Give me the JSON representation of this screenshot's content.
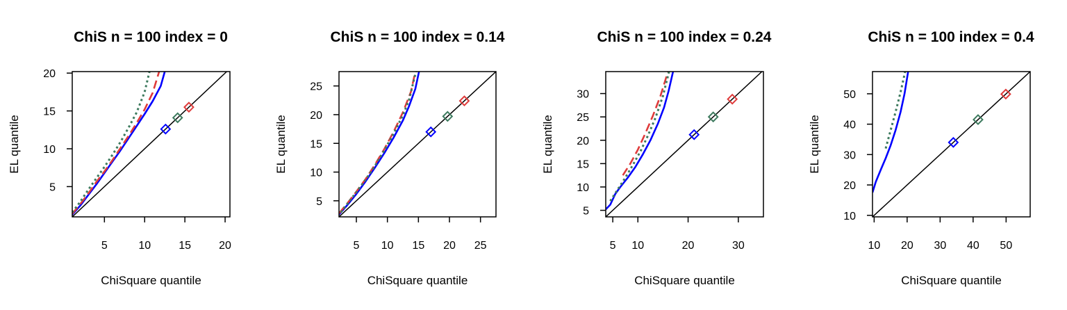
{
  "colors": {
    "diagonal": "#000000",
    "blue": "#0000ff",
    "red": "#df3b3b",
    "green": "#3d7a5e"
  },
  "chart_data": [
    {
      "type": "line",
      "title": "ChiS n = 100 index = 0",
      "xlabel": "ChiSquare quantile",
      "ylabel": "EL quantile",
      "xlim": [
        1.0,
        20.6
      ],
      "ylim": [
        1.0,
        20.2
      ],
      "xticks": [
        5,
        10,
        15,
        20
      ],
      "yticks": [
        5,
        10,
        15,
        20
      ],
      "series": [
        {
          "color": "blue",
          "style": "solid",
          "x": [
            1.0,
            2.0,
            3.0,
            4.0,
            5.0,
            6.0,
            7.0,
            8.0,
            9.0,
            10.0,
            11.0,
            12.0,
            12.5
          ],
          "y": [
            1.3,
            2.5,
            3.9,
            5.3,
            6.8,
            8.3,
            9.8,
            11.4,
            13.0,
            14.6,
            16.3,
            18.3,
            20.2
          ]
        },
        {
          "color": "red",
          "style": "dashed",
          "x": [
            1.0,
            2.0,
            3.0,
            4.0,
            5.0,
            6.0,
            7.0,
            8.0,
            9.0,
            10.0,
            11.0,
            11.8
          ],
          "y": [
            1.4,
            2.7,
            4.1,
            5.6,
            7.0,
            8.5,
            10.1,
            11.7,
            13.4,
            15.2,
            17.4,
            20.2
          ]
        },
        {
          "color": "green",
          "style": "dotted",
          "x": [
            1.0,
            2.0,
            3.0,
            4.0,
            5.0,
            6.0,
            7.0,
            8.0,
            9.0,
            10.0,
            10.6
          ],
          "y": [
            1.6,
            3.0,
            4.6,
            6.1,
            7.6,
            9.2,
            10.9,
            12.8,
            14.8,
            17.5,
            20.2
          ]
        }
      ],
      "markers": [
        {
          "color": "blue",
          "x": 12.6,
          "y": 12.6
        },
        {
          "color": "green",
          "x": 14.1,
          "y": 14.1
        },
        {
          "color": "red",
          "x": 15.5,
          "y": 15.5
        }
      ]
    },
    {
      "type": "line",
      "title": "ChiS n = 100 index = 0.14",
      "xlabel": "ChiSquare quantile",
      "ylabel": "EL quantile",
      "xlim": [
        2.2,
        27.5
      ],
      "ylim": [
        2.2,
        27.5
      ],
      "xticks": [
        5,
        10,
        15,
        20,
        25
      ],
      "yticks": [
        5,
        10,
        15,
        20,
        25
      ],
      "series": [
        {
          "color": "blue",
          "style": "solid",
          "x": [
            2.2,
            3.5,
            5.0,
            6.5,
            8.0,
            9.5,
            11.0,
            12.5,
            13.5,
            14.5,
            15.1
          ],
          "y": [
            2.6,
            4.2,
            6.2,
            8.4,
            10.8,
            13.3,
            16.0,
            19.0,
            21.5,
            24.5,
            27.5
          ]
        },
        {
          "color": "red",
          "style": "dashed",
          "x": [
            2.2,
            3.5,
            5.0,
            6.5,
            8.0,
            9.5,
            11.0,
            12.5,
            13.8,
            14.5
          ],
          "y": [
            2.8,
            4.5,
            6.6,
            8.8,
            11.3,
            14.0,
            17.0,
            20.4,
            24.0,
            27.5
          ]
        },
        {
          "color": "green",
          "style": "dotted",
          "x": [
            2.5,
            3.5,
            5.0,
            6.5,
            8.0,
            9.5,
            11.0,
            12.5,
            13.5,
            14.6
          ],
          "y": [
            3.0,
            4.4,
            6.5,
            8.7,
            11.1,
            13.8,
            16.7,
            19.9,
            22.6,
            27.5
          ]
        }
      ],
      "markers": [
        {
          "color": "blue",
          "x": 17.0,
          "y": 17.0
        },
        {
          "color": "green",
          "x": 19.7,
          "y": 19.7
        },
        {
          "color": "red",
          "x": 22.4,
          "y": 22.4
        }
      ]
    },
    {
      "type": "line",
      "title": "ChiS n = 100 index = 0.24",
      "xlabel": "ChiSquare quantile",
      "ylabel": "EL quantile",
      "xlim": [
        3.6,
        35.0
      ],
      "ylim": [
        3.6,
        34.7
      ],
      "xticks": [
        5,
        10,
        20,
        30
      ],
      "yticks": [
        5,
        10,
        15,
        20,
        25,
        30
      ],
      "series": [
        {
          "color": "blue",
          "style": "solid",
          "x": [
            3.6,
            4.5,
            5.5,
            6.5,
            8.0,
            9.5,
            11.0,
            12.5,
            14.0,
            15.2,
            16.1,
            17.0
          ],
          "y": [
            5.2,
            6.2,
            8.5,
            10.0,
            12.0,
            14.3,
            17.0,
            20.0,
            23.6,
            27.0,
            30.5,
            34.7
          ]
        },
        {
          "color": "red",
          "style": "dashed",
          "x": [
            7.0,
            8.5,
            10.0,
            11.5,
            13.0,
            14.5,
            16.0
          ],
          "y": [
            12.5,
            15.0,
            18.0,
            21.5,
            25.3,
            29.5,
            34.7
          ]
        },
        {
          "color": "green",
          "style": "dotted",
          "x": [
            4.5,
            6.0,
            7.5,
            9.0,
            10.5,
            12.0,
            13.5,
            15.0,
            16.2
          ],
          "y": [
            7.0,
            9.5,
            12.0,
            14.7,
            17.6,
            21.0,
            24.8,
            29.5,
            34.7
          ]
        }
      ],
      "markers": [
        {
          "color": "blue",
          "x": 21.2,
          "y": 21.2
        },
        {
          "color": "green",
          "x": 25.0,
          "y": 25.0
        },
        {
          "color": "red",
          "x": 28.8,
          "y": 28.8
        }
      ]
    },
    {
      "type": "line",
      "title": "ChiS n = 100 index = 0.4",
      "xlabel": "ChiSquare quantile",
      "ylabel": "EL quantile",
      "xlim": [
        9.5,
        57.3
      ],
      "ylim": [
        9.5,
        57.3
      ],
      "xticks": [
        10,
        20,
        30,
        40,
        50
      ],
      "yticks": [
        10,
        20,
        30,
        40,
        50
      ],
      "series": [
        {
          "color": "blue",
          "style": "solid",
          "x": [
            9.5,
            10.5,
            12.0,
            13.5,
            15.0,
            16.5,
            18.0,
            19.2,
            20.3
          ],
          "y": [
            17.5,
            21.0,
            25.0,
            28.8,
            33.0,
            38.0,
            44.0,
            50.0,
            57.3
          ]
        },
        {
          "color": "green",
          "style": "dotted",
          "x": [
            13.5,
            15.0,
            16.5,
            18.0,
            19.4
          ],
          "y": [
            32.0,
            38.0,
            44.0,
            50.5,
            57.3
          ]
        }
      ],
      "markers": [
        {
          "color": "blue",
          "x": 34.0,
          "y": 34.0
        },
        {
          "color": "green",
          "x": 41.5,
          "y": 41.5
        },
        {
          "color": "red",
          "x": 49.9,
          "y": 49.9
        }
      ]
    }
  ]
}
